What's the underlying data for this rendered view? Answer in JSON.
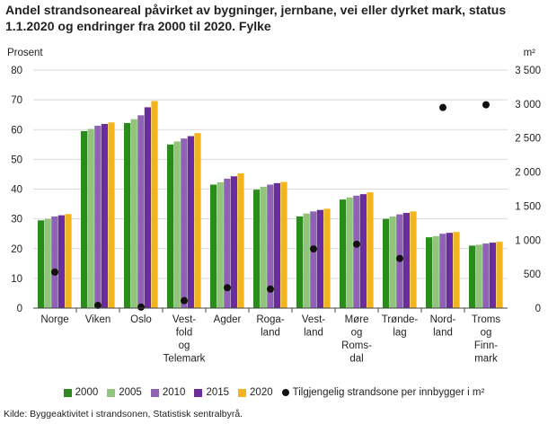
{
  "chart_data": {
    "type": "bar",
    "title": "Andel strandsoneareal påvirket av bygninger, jernbane, vei eller dyrket mark, status 1.1.2020 og endringer fra 2000 til 2020. Fylke",
    "ylabel": "Prosent",
    "y2label": "m²",
    "ylim": [
      0,
      80
    ],
    "yticks": [
      0,
      10,
      20,
      30,
      40,
      50,
      60,
      70,
      80
    ],
    "y2lim": [
      0,
      3500
    ],
    "y2ticks": [
      0,
      500,
      1000,
      1500,
      2000,
      2500,
      3000,
      3500
    ],
    "y2tick_labels": [
      "0",
      "500",
      "1 000",
      "1 500",
      "2 000",
      "2 500",
      "3 000",
      "3 500"
    ],
    "grid": true,
    "legend_position": "bottom",
    "categories": [
      [
        "Norge"
      ],
      [
        "Viken"
      ],
      [
        "Oslo"
      ],
      [
        "Vest-",
        "fold",
        "og",
        "Telemark"
      ],
      [
        "Agder"
      ],
      [
        "Roga-",
        "land"
      ],
      [
        "Vest-",
        "land"
      ],
      [
        "Møre",
        "og",
        "Roms-",
        "dal"
      ],
      [
        "Trønde-",
        "lag"
      ],
      [
        "Nord-",
        "land"
      ],
      [
        "Troms",
        "og",
        "Finn-",
        "mark"
      ]
    ],
    "series": [
      {
        "name": "2000",
        "color": "#2d8a1e",
        "values": [
          29.5,
          59.5,
          62.2,
          55.0,
          41.5,
          39.8,
          30.8,
          36.5,
          30.0,
          23.8,
          21.0
        ]
      },
      {
        "name": "2005",
        "color": "#93c47d",
        "values": [
          30.0,
          60.2,
          63.5,
          56.0,
          42.3,
          40.8,
          31.8,
          37.2,
          30.8,
          24.2,
          21.3
        ]
      },
      {
        "name": "2010",
        "color": "#8e63b5",
        "values": [
          30.8,
          61.3,
          64.8,
          57.0,
          43.5,
          41.5,
          32.5,
          37.8,
          31.5,
          25.0,
          21.7
        ]
      },
      {
        "name": "2015",
        "color": "#6a2d9a",
        "values": [
          31.2,
          61.9,
          67.5,
          57.8,
          44.3,
          42.0,
          33.0,
          38.3,
          32.0,
          25.3,
          22.0
        ]
      },
      {
        "name": "2020",
        "color": "#f5b41e",
        "values": [
          31.6,
          62.4,
          69.6,
          58.8,
          45.3,
          42.4,
          33.4,
          38.9,
          32.5,
          25.6,
          22.3
        ]
      }
    ],
    "scatter": {
      "name": "Tilgjengelig strandsone per innbygger i m²",
      "axis": "right",
      "color": "#111111",
      "values": [
        530,
        40,
        15,
        110,
        300,
        280,
        870,
        940,
        730,
        2950,
        2990
      ]
    },
    "source": "Kilde: Byggeaktivitet i strandsonen, Statistisk sentralbyrå."
  }
}
